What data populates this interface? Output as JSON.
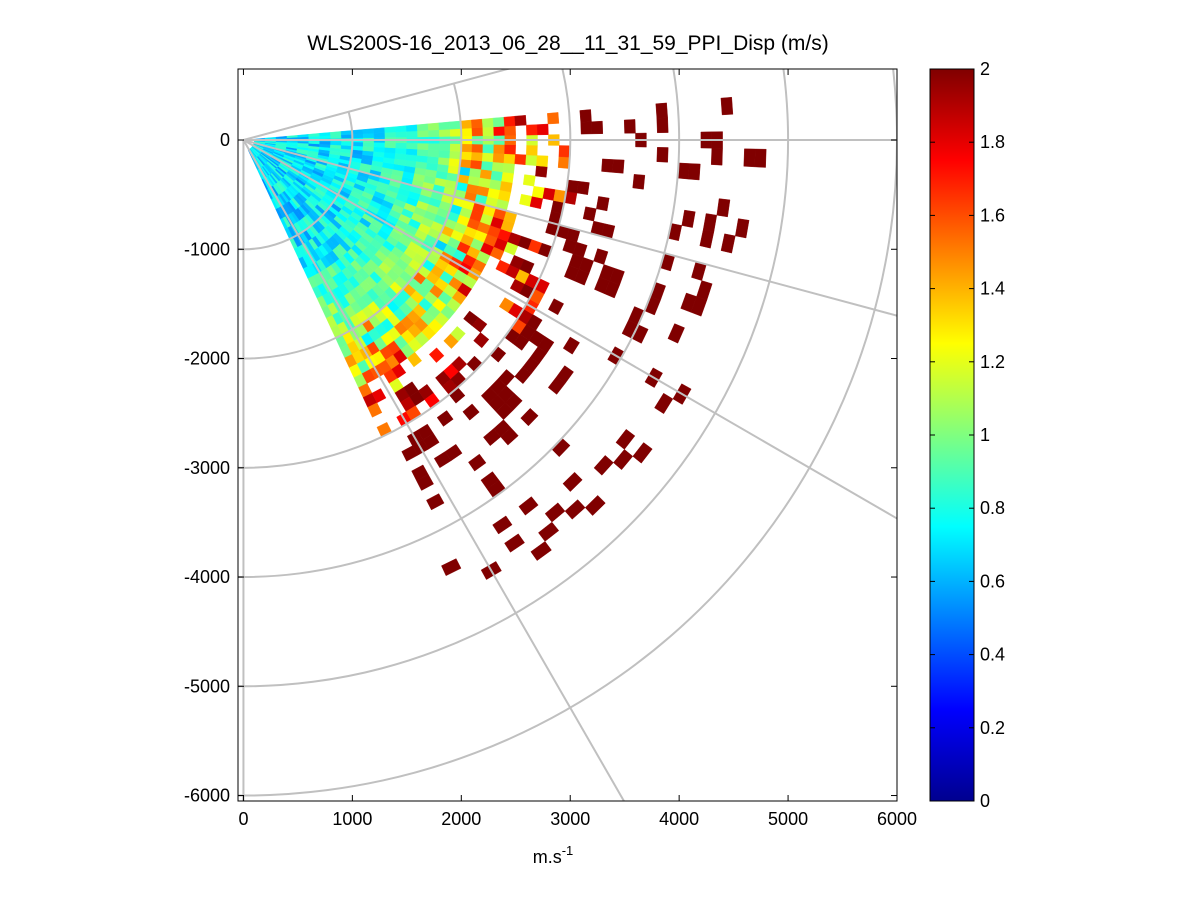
{
  "chart_data": {
    "type": "heatmap",
    "subtype": "polar-ppi-sector",
    "title": "WLS200S-16_2013_06_28__11_31_59_PPI_Disp (m/s)",
    "xlabel": "m.s",
    "xlabel_superscript": "-1",
    "ylabel": "",
    "xlim": [
      -50,
      6000
    ],
    "ylim": [
      -6050,
      650
    ],
    "x_ticks": [
      0,
      1000,
      2000,
      3000,
      4000,
      5000,
      6000
    ],
    "x_tick_labels": [
      "0",
      "1000",
      "2000",
      "3000",
      "4000",
      "5000",
      "6000"
    ],
    "y_ticks": [
      0,
      -1000,
      -2000,
      -3000,
      -4000,
      -5000,
      -6000
    ],
    "y_tick_labels": [
      "0",
      "-1000",
      "-2000",
      "-3000",
      "-4000",
      "-5000",
      "-6000"
    ],
    "grid": true,
    "grid_color": "#c0c0c0",
    "polar_grid": {
      "ring_radii": [
        1000,
        2000,
        3000,
        4000,
        5000,
        6000
      ],
      "spoke_angles_deg": [
        0,
        -30,
        -60,
        -90,
        15,
        -15
      ]
    },
    "sector": {
      "az_start_deg": 5,
      "az_end_deg": -65,
      "range_start": 100,
      "range_end": 4800
    },
    "colorbar": {
      "colormap": "jet",
      "min": 0,
      "max": 2,
      "ticks": [
        0,
        0.2,
        0.4,
        0.6,
        0.8,
        1,
        1.2,
        1.4,
        1.6,
        1.8,
        2
      ],
      "tick_labels": [
        "0",
        "0.2",
        "0.4",
        "0.6",
        "0.8",
        "1",
        "1.2",
        "1.4",
        "1.6",
        "1.8",
        "2"
      ],
      "position": "right"
    },
    "value_profile": [
      {
        "range": 500,
        "value": 0.7
      },
      {
        "range": 1000,
        "value": 0.72
      },
      {
        "range": 1500,
        "value": 0.85
      },
      {
        "range": 2000,
        "value": 1.1
      },
      {
        "range": 2500,
        "value": 1.5
      },
      {
        "range": 3000,
        "value": 1.9
      },
      {
        "range": 3500,
        "value": 2.0
      }
    ]
  }
}
